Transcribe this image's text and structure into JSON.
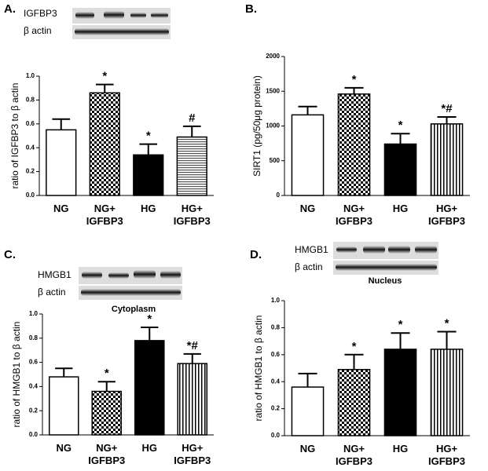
{
  "chart_data": [
    {
      "type": "bar",
      "panel": "A.",
      "blot_labels": [
        "IGFBP3",
        "β actin"
      ],
      "ylabel": "ratio of IGFBP3 to β actin",
      "categories": [
        "NG",
        "NG+ IGFBP3",
        "HG",
        "HG+ IGFBP3"
      ],
      "values": [
        0.55,
        0.86,
        0.34,
        0.49
      ],
      "errors": [
        0.09,
        0.07,
        0.09,
        0.09
      ],
      "annotations": [
        null,
        "*",
        "*",
        "#"
      ],
      "fills": [
        "white",
        "checker",
        "black",
        "hstripes"
      ],
      "ylim": [
        0,
        1
      ],
      "yticks": [
        {
          "value": 0,
          "label": "0.0"
        },
        0.2,
        0.4,
        0.6,
        0.8,
        {
          "value": 1,
          "label": "1.0"
        }
      ]
    },
    {
      "type": "bar",
      "panel": "B.",
      "ylabel": "SIRT1 (pg/50μg protein)",
      "categories": [
        "NG",
        "NG+ IGFBP3",
        "HG",
        "HG+ IGFBP3"
      ],
      "values": [
        1160,
        1460,
        740,
        1030
      ],
      "errors": [
        120,
        90,
        150,
        100
      ],
      "annotations": [
        null,
        "*",
        "*",
        "*#"
      ],
      "fills": [
        "white",
        "checker",
        "black",
        "vstripes"
      ],
      "ylim": [
        0,
        2000
      ],
      "yticks": [
        0,
        500,
        1000,
        1500,
        2000
      ]
    },
    {
      "type": "bar",
      "panel": "C.",
      "blot_labels": [
        "HMGB1",
        "β actin"
      ],
      "caption": "Cytoplasm",
      "ylabel": "ratio of HMGB1 to β actin",
      "categories": [
        "NG",
        "NG+ IGFBP3",
        "HG",
        "HG+ IGFBP3"
      ],
      "values": [
        0.48,
        0.36,
        0.78,
        0.59
      ],
      "errors": [
        0.07,
        0.08,
        0.11,
        0.08
      ],
      "annotations": [
        null,
        "*",
        "*",
        "*#"
      ],
      "fills": [
        "white",
        "checker",
        "black",
        "vstripes"
      ],
      "ylim": [
        0,
        1
      ],
      "yticks": [
        {
          "value": 0,
          "label": "0.0"
        },
        0.2,
        0.4,
        0.6,
        0.8,
        {
          "value": 1,
          "label": "1.0"
        }
      ]
    },
    {
      "type": "bar",
      "panel": "D.",
      "blot_labels": [
        "HMGB1",
        "β actin"
      ],
      "caption": "Nucleus",
      "ylabel": "ratio of HMGB1 to β actin",
      "categories": [
        "NG",
        "NG+ IGFBP3",
        "HG",
        "HG+ IGFBP3"
      ],
      "values": [
        0.36,
        0.49,
        0.64,
        0.64
      ],
      "errors": [
        0.1,
        0.11,
        0.12,
        0.13
      ],
      "annotations": [
        null,
        "*",
        "*",
        "*"
      ],
      "fills": [
        "white",
        "checker",
        "black",
        "vstripes"
      ],
      "ylim": [
        0,
        1
      ],
      "yticks": [
        {
          "value": 0,
          "label": "0.0"
        },
        0.2,
        0.4,
        0.6,
        0.8,
        {
          "value": 1,
          "label": "1.0"
        }
      ]
    }
  ]
}
